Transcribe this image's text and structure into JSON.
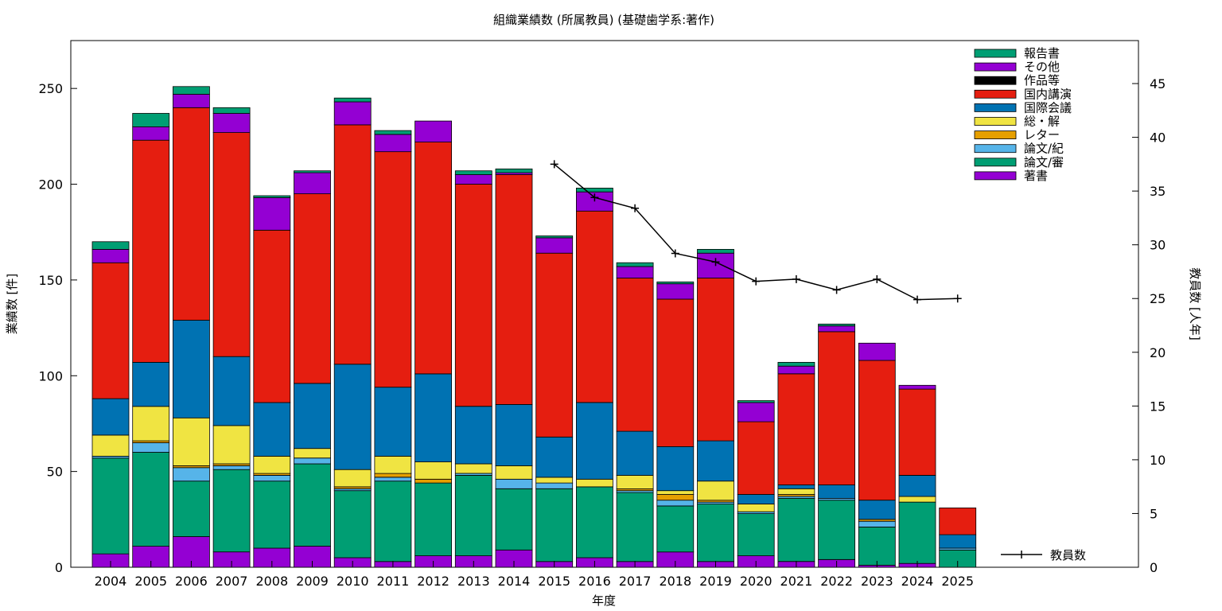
{
  "chart_data": {
    "type": "bar",
    "stacked": true,
    "title": "組織業績数 (所属教員) (基礎歯学系:著作)",
    "xlabel": "年度",
    "ylabel": "業績数 [件]",
    "y2label": "教員数 [人年]",
    "ylim": [
      0,
      275
    ],
    "y2lim": [
      0,
      49
    ],
    "yticks": [
      "0",
      "50",
      "100",
      "150",
      "200",
      "250"
    ],
    "y2ticks": [
      "0",
      "5",
      "10",
      "15",
      "20",
      "25",
      "30",
      "35",
      "40",
      "45"
    ],
    "categories": [
      "2004",
      "2005",
      "2006",
      "2007",
      "2008",
      "2009",
      "2010",
      "2011",
      "2012",
      "2013",
      "2014",
      "2015",
      "2016",
      "2017",
      "2018",
      "2019",
      "2020",
      "2021",
      "2022",
      "2023",
      "2024",
      "2025"
    ],
    "grid": false,
    "legend_position": "top-right",
    "series": [
      {
        "name": "著書",
        "color": "#9400d3",
        "values": [
          7,
          11,
          16,
          8,
          10,
          11,
          5,
          3,
          6,
          6,
          9,
          3,
          5,
          3,
          8,
          3,
          6,
          3,
          4,
          1,
          2,
          0
        ]
      },
      {
        "name": "論文/審",
        "color": "#009e73",
        "values": [
          50,
          49,
          29,
          43,
          35,
          43,
          35,
          42,
          38,
          42,
          32,
          38,
          37,
          36,
          24,
          30,
          22,
          33,
          31,
          20,
          32,
          9
        ]
      },
      {
        "name": "論文/紀",
        "color": "#56b4e9",
        "values": [
          1,
          5,
          7,
          2,
          3,
          3,
          1,
          2,
          0,
          1,
          5,
          3,
          0,
          1,
          3,
          1,
          1,
          1,
          1,
          3,
          0,
          1
        ]
      },
      {
        "name": "レター",
        "color": "#e69f00",
        "values": [
          0,
          1,
          1,
          1,
          1,
          0,
          1,
          2,
          2,
          0,
          0,
          0,
          0,
          1,
          3,
          1,
          0,
          1,
          0,
          1,
          0,
          0
        ]
      },
      {
        "name": "総・解",
        "color": "#f0e442",
        "values": [
          11,
          18,
          25,
          20,
          9,
          5,
          9,
          9,
          9,
          5,
          7,
          3,
          4,
          7,
          2,
          10,
          4,
          3,
          0,
          0,
          3,
          0
        ]
      },
      {
        "name": "国際会議",
        "color": "#0072b2",
        "values": [
          19,
          23,
          51,
          36,
          28,
          34,
          55,
          36,
          46,
          30,
          32,
          21,
          40,
          23,
          23,
          21,
          5,
          2,
          7,
          10,
          11,
          7
        ]
      },
      {
        "name": "国内講演",
        "color": "#e51e10",
        "values": [
          71,
          116,
          111,
          117,
          90,
          99,
          125,
          123,
          121,
          116,
          120,
          96,
          100,
          80,
          77,
          85,
          38,
          58,
          80,
          73,
          45,
          14
        ]
      },
      {
        "name": "作品等",
        "color": "#000000",
        "values": [
          0,
          0,
          0,
          0,
          0,
          0,
          0,
          0,
          0,
          0,
          0,
          0,
          0,
          0,
          0,
          0,
          0,
          0,
          0,
          0,
          0,
          0
        ]
      },
      {
        "name": "その他",
        "color": "#9400d3",
        "values": [
          7,
          7,
          7,
          10,
          17,
          11,
          12,
          9,
          11,
          5,
          1,
          8,
          10,
          6,
          8,
          13,
          10,
          4,
          3,
          9,
          2,
          0
        ]
      },
      {
        "name": "報告書",
        "color": "#009e73",
        "values": [
          4,
          7,
          4,
          3,
          1,
          1,
          2,
          2,
          0,
          2,
          2,
          1,
          2,
          2,
          1,
          2,
          1,
          2,
          1,
          0,
          0,
          0
        ]
      }
    ],
    "line_series": {
      "name": "教員数",
      "axis": "y2",
      "color": "#000000",
      "x": [
        "2015",
        "2016",
        "2017",
        "2018",
        "2019",
        "2020",
        "2021",
        "2022",
        "2023",
        "2024",
        "2025"
      ],
      "values": [
        37.5,
        34.4,
        33.4,
        29.2,
        28.4,
        26.6,
        26.8,
        25.8,
        26.8,
        24.9,
        25.0
      ]
    }
  }
}
